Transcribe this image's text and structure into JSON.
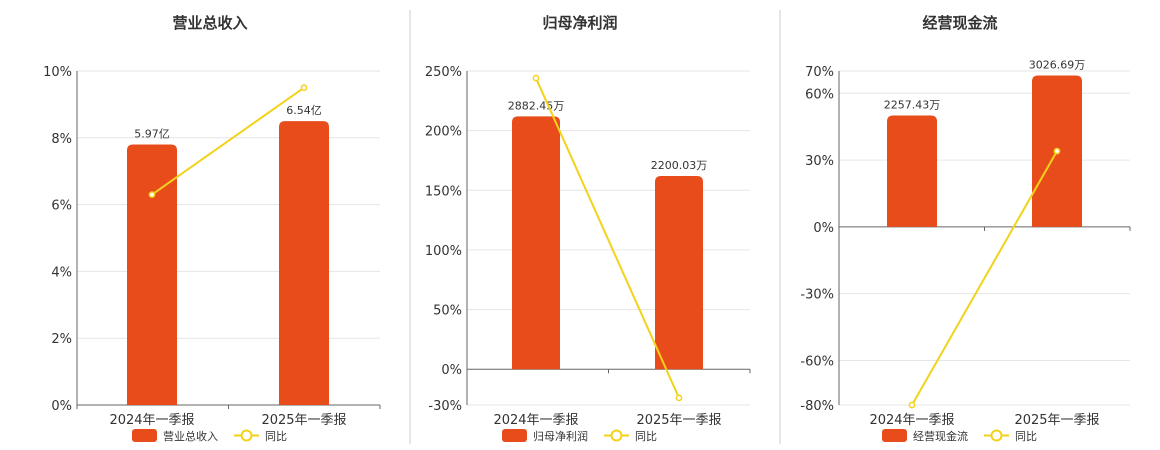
{
  "colors": {
    "bar": "#e84c1b",
    "line": "#f2d21a",
    "grid": "#e6e6e6",
    "axis": "#666666",
    "divider": "#cccccc"
  },
  "chart_data": [
    {
      "type": "bar",
      "title": "营业总收入",
      "categories": [
        "2024年一季报",
        "2025年一季报"
      ],
      "ylim": [
        0,
        10
      ],
      "yticks": [
        "0%",
        "2%",
        "4%",
        "6%",
        "8%",
        "10%"
      ],
      "ytick_values": [
        0,
        2,
        4,
        6,
        8,
        10
      ],
      "series": [
        {
          "name": "营业总收入",
          "type": "bar",
          "values": [
            7.8,
            8.5
          ],
          "labels": [
            "5.97亿",
            "6.54亿"
          ]
        },
        {
          "name": "同比",
          "type": "line",
          "values": [
            6.3,
            9.5
          ]
        }
      ],
      "legend": [
        "营业总收入",
        "同比"
      ],
      "legend_position": "bottom"
    },
    {
      "type": "bar",
      "title": "归母净利润",
      "categories": [
        "2024年一季报",
        "2025年一季报"
      ],
      "ylim": [
        -30,
        250
      ],
      "yticks": [
        "-30%",
        "0%",
        "50%",
        "100%",
        "150%",
        "200%",
        "250%"
      ],
      "ytick_values": [
        -30,
        0,
        50,
        100,
        150,
        200,
        250
      ],
      "series": [
        {
          "name": "归母净利润",
          "type": "bar",
          "values": [
            212,
            162
          ],
          "labels": [
            "2882.45万",
            "2200.03万"
          ]
        },
        {
          "name": "同比",
          "type": "line",
          "values": [
            244,
            -24
          ]
        }
      ],
      "legend": [
        "归母净利润",
        "同比"
      ],
      "legend_position": "bottom"
    },
    {
      "type": "bar",
      "title": "经营现金流",
      "categories": [
        "2024年一季报",
        "2025年一季报"
      ],
      "ylim": [
        -80,
        70
      ],
      "yticks": [
        "-80%",
        "-60%",
        "-30%",
        "0%",
        "30%",
        "60%",
        "70%"
      ],
      "ytick_values": [
        -80,
        -60,
        -30,
        0,
        30,
        60,
        70
      ],
      "series": [
        {
          "name": "经营现金流",
          "type": "bar",
          "values": [
            50,
            68
          ],
          "labels": [
            "2257.43万",
            "3026.69万"
          ]
        },
        {
          "name": "同比",
          "type": "line",
          "values": [
            -80,
            34
          ]
        }
      ],
      "legend": [
        "经营现金流",
        "同比"
      ],
      "legend_position": "bottom"
    }
  ]
}
